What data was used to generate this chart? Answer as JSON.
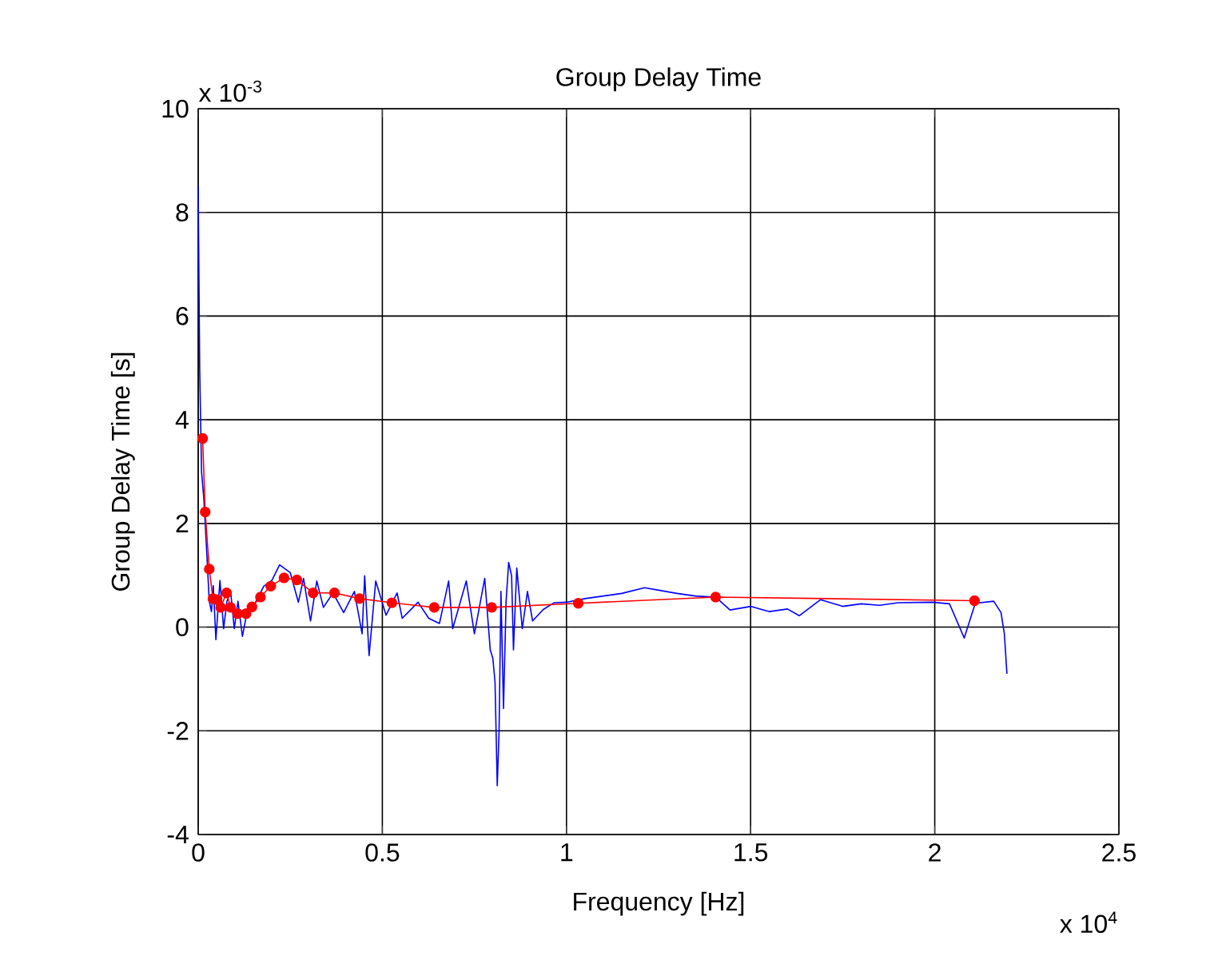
{
  "chart_data": {
    "type": "line",
    "title": "Group Delay Time",
    "xlabel": "Frequency [Hz]",
    "ylabel": "Group Delay Time [s]",
    "annotations": [
      "x 10$^{-3}$",
      "x 10$^{4}$"
    ],
    "xlim": [
      0,
      2.5
    ],
    "ylim": [
      -4,
      10
    ],
    "xticks": [
      0,
      0.5,
      1,
      1.5,
      2,
      2.5
    ],
    "yticks": [
      -4,
      -2,
      0,
      2,
      4,
      6,
      8,
      10
    ],
    "grid": true,
    "series": [
      {
        "color": "#0000ff",
        "marker": "none",
        "x": [
          0,
          0.004,
          0.009,
          0.015,
          0.022,
          0.03,
          0.036,
          0.041,
          0.048,
          0.059,
          0.069,
          0.078,
          0.088,
          0.098,
          0.108,
          0.12,
          0.135,
          0.15,
          0.178,
          0.2,
          0.221,
          0.25,
          0.272,
          0.286,
          0.305,
          0.322,
          0.34,
          0.366,
          0.395,
          0.424,
          0.445,
          0.452,
          0.464,
          0.482,
          0.51,
          0.54,
          0.554,
          0.597,
          0.626,
          0.655,
          0.68,
          0.691,
          0.728,
          0.75,
          0.778,
          0.793,
          0.8,
          0.806,
          0.812,
          0.817,
          0.822,
          0.829,
          0.836,
          0.843,
          0.851,
          0.856,
          0.865,
          0.88,
          0.894,
          0.908,
          0.937,
          0.966,
          1.0,
          1.05,
          1.1,
          1.15,
          1.212,
          1.26,
          1.3,
          1.35,
          1.405,
          1.444,
          1.5,
          1.55,
          1.6,
          1.632,
          1.69,
          1.75,
          1.8,
          1.85,
          1.9,
          1.994,
          2.04,
          2.08,
          2.11,
          2.16,
          2.18,
          2.189,
          2.196
        ],
        "values": [
          8.5,
          5.0,
          3.0,
          2.5,
          1.6,
          0.5,
          0.3,
          0.8,
          -0.24,
          0.9,
          -0.03,
          0.5,
          0.69,
          -0.03,
          0.5,
          -0.18,
          0.38,
          0.4,
          0.79,
          0.9,
          1.2,
          1.05,
          0.48,
          0.94,
          0.12,
          0.89,
          0.38,
          0.66,
          0.28,
          0.69,
          -0.13,
          0.99,
          -0.55,
          0.89,
          0.23,
          0.66,
          0.17,
          0.48,
          0.17,
          0.07,
          0.89,
          -0.03,
          0.89,
          -0.13,
          0.94,
          -0.44,
          -0.6,
          -1.06,
          -3.06,
          -2.0,
          0.69,
          -1.57,
          0.5,
          1.25,
          0.99,
          -0.44,
          1.14,
          -0.03,
          0.69,
          0.12,
          0.34,
          0.47,
          0.48,
          0.55,
          0.6,
          0.65,
          0.76,
          0.7,
          0.65,
          0.6,
          0.58,
          0.33,
          0.4,
          0.3,
          0.35,
          0.22,
          0.53,
          0.4,
          0.45,
          0.42,
          0.47,
          0.48,
          0.45,
          -0.21,
          0.46,
          0.5,
          0.28,
          -0.13,
          -0.9
        ]
      },
      {
        "color": "#ff0000",
        "marker": "circle",
        "x": [
          0.012,
          0.019,
          0.03,
          0.04,
          0.051,
          0.061,
          0.077,
          0.088,
          0.107,
          0.13,
          0.146,
          0.169,
          0.197,
          0.233,
          0.268,
          0.312,
          0.37,
          0.438,
          0.526,
          0.641,
          0.797,
          1.032,
          1.405,
          2.108
        ],
        "values": [
          3.64,
          2.22,
          1.12,
          0.55,
          0.53,
          0.38,
          0.66,
          0.38,
          0.26,
          0.26,
          0.39,
          0.58,
          0.79,
          0.95,
          0.91,
          0.66,
          0.66,
          0.55,
          0.47,
          0.38,
          0.38,
          0.46,
          0.58,
          0.51
        ]
      }
    ]
  }
}
